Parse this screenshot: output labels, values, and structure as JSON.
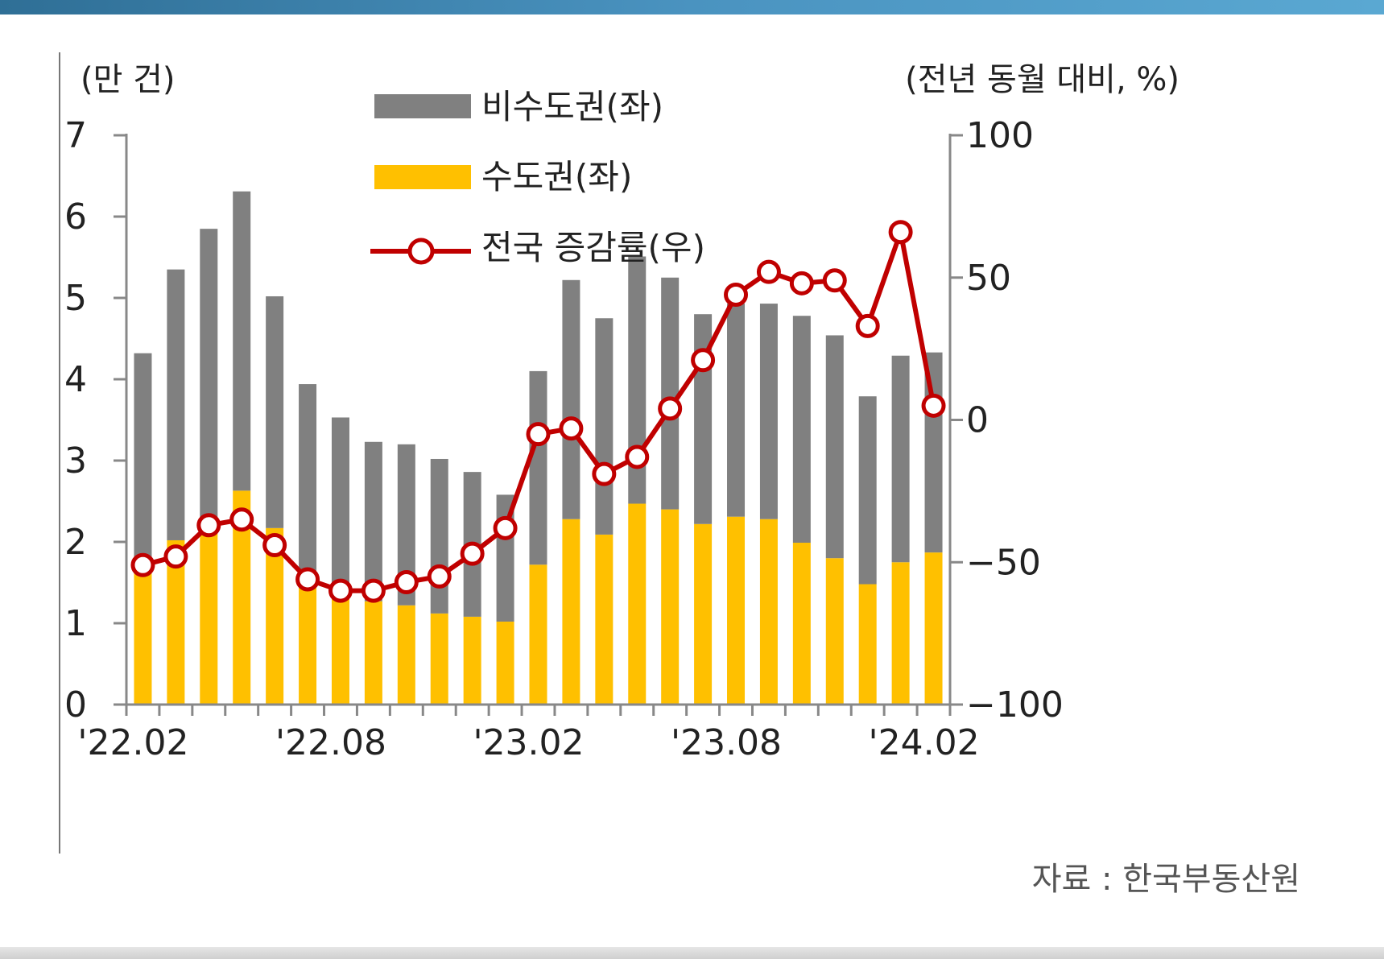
{
  "chart_data": {
    "type": "bar",
    "stacked": true,
    "categories": [
      "'22.02",
      "'22.03",
      "'22.04",
      "'22.05",
      "'22.06",
      "'22.07",
      "'22.08",
      "'22.09",
      "'22.10",
      "'22.11",
      "'22.12",
      "'23.01",
      "'23.02",
      "'23.03",
      "'23.04",
      "'23.05",
      "'23.06",
      "'23.07",
      "'23.08",
      "'23.09",
      "'23.10",
      "'23.11",
      "'23.12",
      "'24.01",
      "'24.02"
    ],
    "x_tick_labels": [
      "'22.02",
      "'22.08",
      "'23.02",
      "'23.08",
      "'24.02"
    ],
    "left_axis": {
      "unit": "(만 건)",
      "ylim": [
        0,
        7
      ],
      "ticks": [
        0,
        1,
        2,
        3,
        4,
        5,
        6,
        7
      ]
    },
    "right_axis": {
      "unit": "(전년 동월 대비, %)",
      "ylim": [
        -100,
        100
      ],
      "ticks": [
        -100,
        -50,
        0,
        50,
        100
      ]
    },
    "series": [
      {
        "name": "비수도권(좌)",
        "type": "bar",
        "axis": "left",
        "color": "#808080",
        "values": [
          2.65,
          3.33,
          3.55,
          3.68,
          2.85,
          2.42,
          2.22,
          1.96,
          1.98,
          1.9,
          1.78,
          1.56,
          2.38,
          2.94,
          2.66,
          3.04,
          2.85,
          2.58,
          2.62,
          2.65,
          2.79,
          2.74,
          2.31,
          2.54,
          2.46
        ]
      },
      {
        "name": "수도권(좌)",
        "type": "bar",
        "axis": "left",
        "color": "#FFC000",
        "values": [
          1.67,
          2.02,
          2.3,
          2.63,
          2.17,
          1.52,
          1.31,
          1.27,
          1.22,
          1.12,
          1.08,
          1.02,
          1.72,
          2.28,
          2.09,
          2.47,
          2.4,
          2.22,
          2.31,
          2.28,
          1.99,
          1.8,
          1.48,
          1.75,
          1.87
        ]
      },
      {
        "name": "전국 증감률(우)",
        "type": "line",
        "axis": "right",
        "color": "#C00000",
        "values": [
          -51,
          -48,
          -37,
          -35,
          -44,
          -56,
          -60,
          -60,
          -57,
          -55,
          -47,
          -38,
          -5,
          -3,
          -19,
          -13,
          4,
          21,
          44,
          52,
          48,
          49,
          33,
          66,
          5
        ]
      }
    ],
    "legend_position": "top-center",
    "grid": false
  },
  "source": "자료 : 한국부동산원"
}
